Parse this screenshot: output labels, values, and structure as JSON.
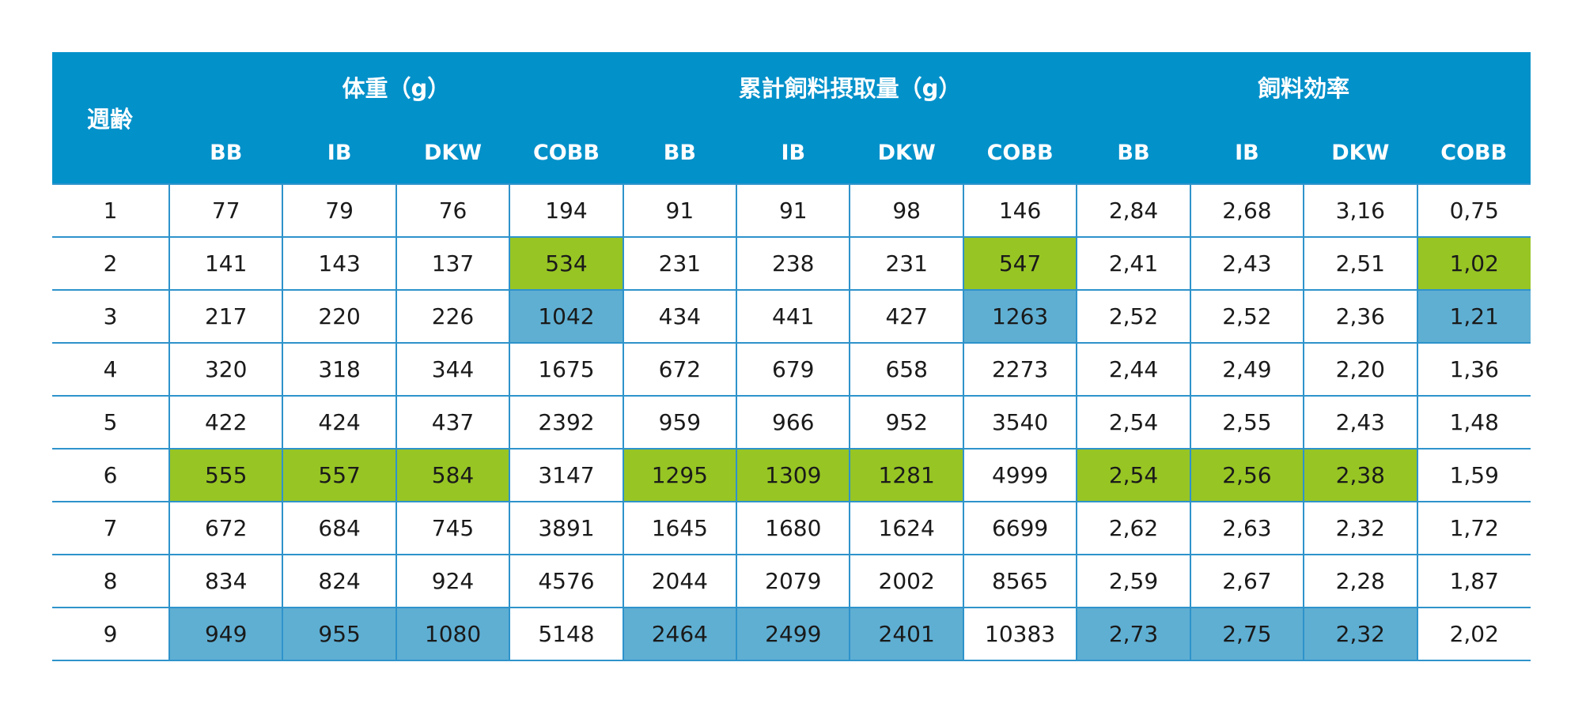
{
  "header": {
    "week_label": "週齢",
    "groups": [
      "体重（g）",
      "累計飼料摂取量（g）",
      "飼料効率"
    ],
    "breeds": [
      "BB",
      "IB",
      "DKW",
      "COBB"
    ]
  },
  "colors": {
    "header_bg": "#0391ca",
    "grid": "#2e93cb",
    "highlight_green": "#97c524",
    "highlight_blue": "#5fafd3"
  },
  "rows": [
    {
      "week": "1",
      "cells": [
        "77",
        "79",
        "76",
        "194",
        "91",
        "91",
        "98",
        "146",
        "2,84",
        "2,68",
        "3,16",
        "0,75"
      ],
      "hl": [
        "",
        "",
        "",
        "",
        "",
        "",
        "",
        "",
        "",
        "",
        "",
        ""
      ]
    },
    {
      "week": "2",
      "cells": [
        "141",
        "143",
        "137",
        "534",
        "231",
        "238",
        "231",
        "547",
        "2,41",
        "2,43",
        "2,51",
        "1,02"
      ],
      "hl": [
        "",
        "",
        "",
        "green",
        "",
        "",
        "",
        "green",
        "",
        "",
        "",
        "green"
      ]
    },
    {
      "week": "3",
      "cells": [
        "217",
        "220",
        "226",
        "1042",
        "434",
        "441",
        "427",
        "1263",
        "2,52",
        "2,52",
        "2,36",
        "1,21"
      ],
      "hl": [
        "",
        "",
        "",
        "blue",
        "",
        "",
        "",
        "blue",
        "",
        "",
        "",
        "blue"
      ]
    },
    {
      "week": "4",
      "cells": [
        "320",
        "318",
        "344",
        "1675",
        "672",
        "679",
        "658",
        "2273",
        "2,44",
        "2,49",
        "2,20",
        "1,36"
      ],
      "hl": [
        "",
        "",
        "",
        "",
        "",
        "",
        "",
        "",
        "",
        "",
        "",
        ""
      ]
    },
    {
      "week": "5",
      "cells": [
        "422",
        "424",
        "437",
        "2392",
        "959",
        "966",
        "952",
        "3540",
        "2,54",
        "2,55",
        "2,43",
        "1,48"
      ],
      "hl": [
        "",
        "",
        "",
        "",
        "",
        "",
        "",
        "",
        "",
        "",
        "",
        ""
      ]
    },
    {
      "week": "6",
      "cells": [
        "555",
        "557",
        "584",
        "3147",
        "1295",
        "1309",
        "1281",
        "4999",
        "2,54",
        "2,56",
        "2,38",
        "1,59"
      ],
      "hl": [
        "green",
        "green",
        "green",
        "",
        "green",
        "green",
        "green",
        "",
        "green",
        "green",
        "green",
        ""
      ]
    },
    {
      "week": "7",
      "cells": [
        "672",
        "684",
        "745",
        "3891",
        "1645",
        "1680",
        "1624",
        "6699",
        "2,62",
        "2,63",
        "2,32",
        "1,72"
      ],
      "hl": [
        "",
        "",
        "",
        "",
        "",
        "",
        "",
        "",
        "",
        "",
        "",
        ""
      ]
    },
    {
      "week": "8",
      "cells": [
        "834",
        "824",
        "924",
        "4576",
        "2044",
        "2079",
        "2002",
        "8565",
        "2,59",
        "2,67",
        "2,28",
        "1,87"
      ],
      "hl": [
        "",
        "",
        "",
        "",
        "",
        "",
        "",
        "",
        "",
        "",
        "",
        ""
      ]
    },
    {
      "week": "9",
      "cells": [
        "949",
        "955",
        "1080",
        "5148",
        "2464",
        "2499",
        "2401",
        "10383",
        "2,73",
        "2,75",
        "2,32",
        "2,02"
      ],
      "hl": [
        "blue",
        "blue",
        "blue",
        "",
        "blue",
        "blue",
        "blue",
        "",
        "blue",
        "blue",
        "blue",
        ""
      ]
    }
  ]
}
